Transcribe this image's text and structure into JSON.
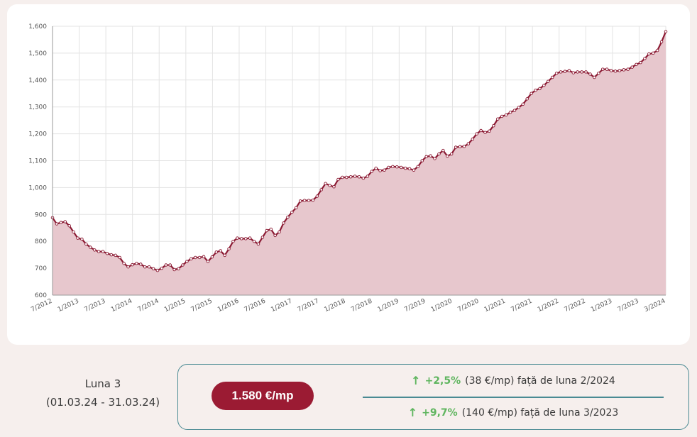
{
  "chart_data": {
    "type": "area",
    "ylim": [
      600,
      1600
    ],
    "yticks": [
      "600",
      "700",
      "800",
      "900",
      "1,000",
      "1,100",
      "1,200",
      "1,300",
      "1,400",
      "1,500",
      "1,600"
    ],
    "yticks_values": [
      600,
      700,
      800,
      900,
      1000,
      1100,
      1200,
      1300,
      1400,
      1500,
      1600
    ],
    "xticks": [
      "7/2012",
      "1/2013",
      "7/2013",
      "1/2014",
      "7/2014",
      "1/2015",
      "7/2015",
      "1/2016",
      "7/2016",
      "1/2017",
      "7/2017",
      "1/2018",
      "7/2018",
      "1/2019",
      "7/2019",
      "1/2020",
      "7/2020",
      "1/2021",
      "7/2021",
      "1/2022",
      "7/2022",
      "1/2023",
      "7/2023",
      "3/2024"
    ],
    "x_start": "7/2012",
    "x_end": "3/2024",
    "grid": true,
    "line_color": "#8b1a33",
    "fill_color": "#e7c7cd",
    "values": [
      888,
      865,
      870,
      873,
      858,
      835,
      812,
      808,
      790,
      778,
      768,
      762,
      762,
      755,
      750,
      748,
      740,
      718,
      705,
      713,
      718,
      715,
      705,
      705,
      698,
      692,
      700,
      712,
      712,
      695,
      698,
      712,
      725,
      735,
      740,
      740,
      743,
      725,
      742,
      760,
      765,
      748,
      772,
      800,
      812,
      810,
      810,
      812,
      800,
      790,
      815,
      840,
      845,
      822,
      835,
      868,
      890,
      908,
      925,
      950,
      952,
      952,
      953,
      968,
      992,
      1015,
      1008,
      1003,
      1030,
      1038,
      1038,
      1040,
      1042,
      1040,
      1035,
      1042,
      1060,
      1072,
      1063,
      1065,
      1075,
      1078,
      1077,
      1075,
      1072,
      1070,
      1065,
      1078,
      1100,
      1115,
      1118,
      1108,
      1125,
      1138,
      1117,
      1125,
      1150,
      1152,
      1153,
      1163,
      1180,
      1200,
      1212,
      1205,
      1210,
      1230,
      1255,
      1265,
      1270,
      1280,
      1287,
      1298,
      1310,
      1330,
      1350,
      1362,
      1368,
      1380,
      1395,
      1410,
      1425,
      1430,
      1432,
      1435,
      1427,
      1430,
      1430,
      1430,
      1422,
      1410,
      1425,
      1440,
      1440,
      1435,
      1433,
      1435,
      1438,
      1440,
      1448,
      1458,
      1465,
      1480,
      1497,
      1500,
      1510,
      1542,
      1580
    ]
  },
  "summary": {
    "month_label": "Luna 3",
    "date_range": "(01.03.24 - 31.03.24)",
    "price": "1.580 €/mp",
    "change1": {
      "arrow": "↑",
      "pct": "+2,5%",
      "text": "(38 €/mp) față de luna 2/2024"
    },
    "change2": {
      "arrow": "↑",
      "pct": "+9,7%",
      "text": "(140 €/mp) față de luna 3/2023"
    },
    "accent_color": "#9b1b33",
    "positive_color": "#5fb55f",
    "border_color": "#4a8a93"
  }
}
